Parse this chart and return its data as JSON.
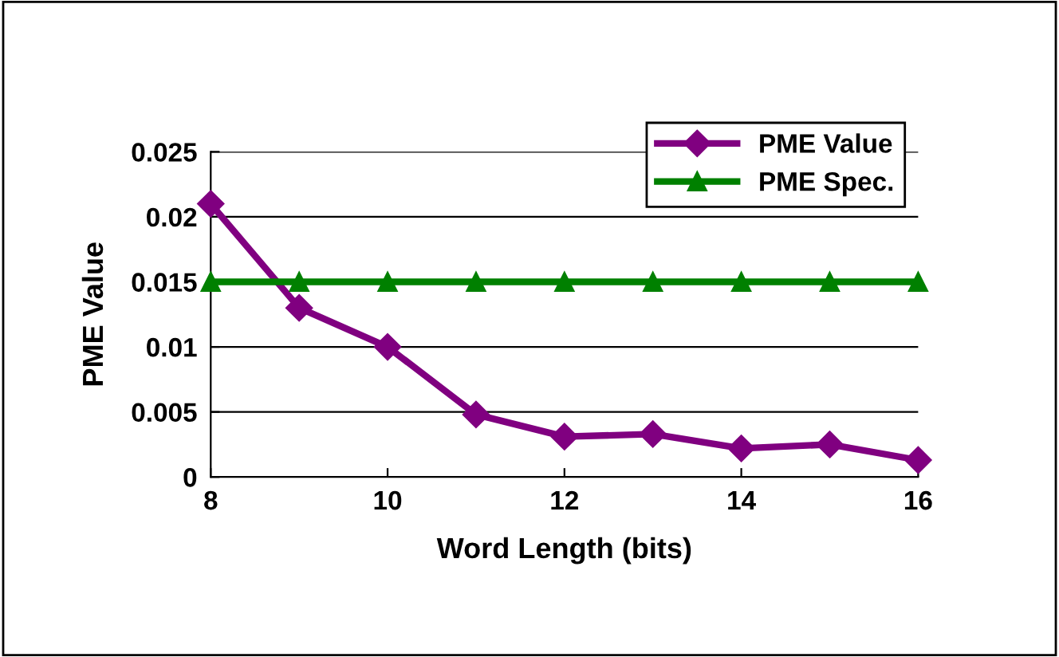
{
  "chart_data": {
    "type": "line",
    "xlabel": "Word Length (bits)",
    "ylabel": "PME Value",
    "x": [
      8,
      9,
      10,
      11,
      12,
      13,
      14,
      15,
      16
    ],
    "series": [
      {
        "name": "PME Value",
        "color": "#800080",
        "marker": "diamond",
        "values": [
          0.021,
          0.013,
          0.01,
          0.0048,
          0.0031,
          0.0033,
          0.0022,
          0.0025,
          0.0013
        ]
      },
      {
        "name": "PME Spec.",
        "color": "#008000",
        "marker": "triangle",
        "values": [
          0.015,
          0.015,
          0.015,
          0.015,
          0.015,
          0.015,
          0.015,
          0.015,
          0.015
        ]
      }
    ],
    "xlim": [
      8,
      16
    ],
    "xticks": [
      8,
      10,
      12,
      14,
      16
    ],
    "ylim": [
      0,
      0.025
    ],
    "yticks": [
      0,
      0.005,
      0.01,
      0.015,
      0.02,
      0.025
    ],
    "grid": "y",
    "legend": "top right",
    "line_style": "solid"
  }
}
